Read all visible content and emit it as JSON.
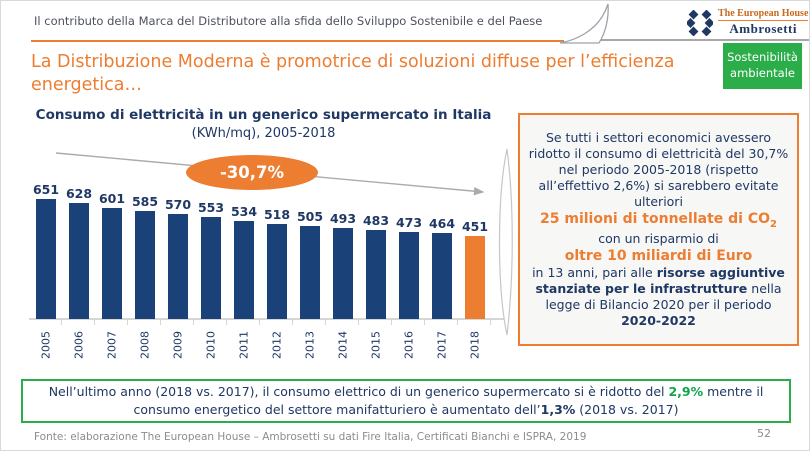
{
  "header": {
    "text": "Il contributo della Marca del Distributore alla sfida dello Sviluppo Sostenibile e del Paese"
  },
  "logo": {
    "line1": "The European House",
    "line2": "Ambrosetti"
  },
  "badge": {
    "line1": "Sostenibilità",
    "line2": "ambientale"
  },
  "title": {
    "line1": "La Distribuzione Moderna è promotrice di soluzioni diffuse per l’efficienza",
    "line2": "energetica…"
  },
  "chart_data": {
    "type": "bar",
    "title": "Consumo di elettricità in un generico supermercato in Italia",
    "subtitle": "(KWh/mq), 2005-2018",
    "categories": [
      "2005",
      "2006",
      "2007",
      "2008",
      "2009",
      "2010",
      "2011",
      "2012",
      "2013",
      "2014",
      "2015",
      "2016",
      "2017",
      "2018"
    ],
    "values": [
      651,
      628,
      601,
      585,
      570,
      553,
      534,
      518,
      505,
      493,
      483,
      473,
      464,
      451
    ],
    "annotation": "-30,7%",
    "highlight_category": "2018",
    "bar_color": "#1B4179",
    "highlight_color": "#ED7D31",
    "ylim": [
      0,
      651
    ],
    "grid": false,
    "xlabel": "",
    "ylabel": "KWh/mq"
  },
  "right_box": {
    "p1": "Se tutti i settori economici avessero ridotto il consumo di elettricità del 30,7% nel periodo 2005-2018 (rispetto all’effettivo 2,6%) si sarebbero evitate ulteriori",
    "h1": "25 milioni di tonnellate di CO",
    "h1_sub": "2",
    "p2": "con un risparmio di",
    "h2": "oltre 10 miliardi di Euro",
    "p3a": "in 13 anni, pari alle ",
    "p3b": "risorse aggiuntive stanziate per le infrastrutture",
    "p3c": " nella legge di Bilancio 2020 per il periodo ",
    "p3d": "2020-2022"
  },
  "green_box": {
    "s1": "Nell’ultimo anno (2018 vs. 2017), il consumo elettrico di un generico supermercato si è ridotto del ",
    "s2": "2,9%",
    "s3": " mentre il consumo energetico del settore manifatturiero è aumentato dell’",
    "s4": "1,3%",
    "s5": " (2018 vs. 2017)"
  },
  "footer": {
    "source": "Fonte: elaborazione The European House – Ambrosetti su dati Fire Italia, Certificati Bianchi e ISPRA, 2019",
    "page": "52"
  },
  "colors": {
    "accent_orange": "#ED7D31",
    "navy": "#1F3864",
    "bar_navy": "#1B4179",
    "green": "#2BAE4A",
    "green_text": "#0FA44A",
    "gray_text": "#8C8C8C"
  }
}
